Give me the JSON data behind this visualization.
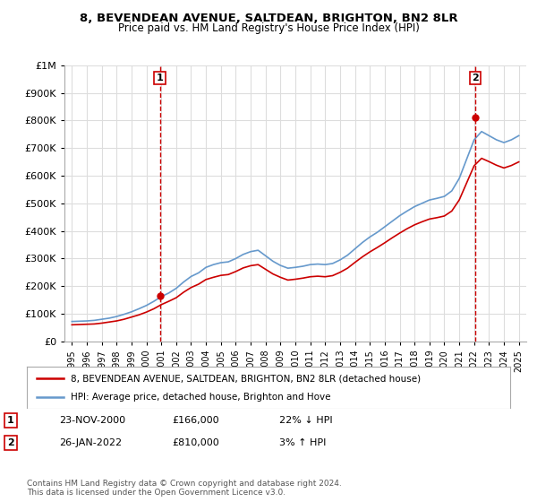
{
  "title": "8, BEVENDEAN AVENUE, SALTDEAN, BRIGHTON, BN2 8LR",
  "subtitle": "Price paid vs. HM Land Registry's House Price Index (HPI)",
  "legend_line1": "8, BEVENDEAN AVENUE, SALTDEAN, BRIGHTON, BN2 8LR (detached house)",
  "legend_line2": "HPI: Average price, detached house, Brighton and Hove",
  "transaction1_label": "1",
  "transaction1_date": "23-NOV-2000",
  "transaction1_price": "£166,000",
  "transaction1_hpi": "22% ↓ HPI",
  "transaction1_year": 2000.9,
  "transaction1_value": 166000,
  "transaction2_label": "2",
  "transaction2_date": "26-JAN-2022",
  "transaction2_price": "£810,000",
  "transaction2_hpi": "3% ↑ HPI",
  "transaction2_year": 2022.07,
  "transaction2_value": 810000,
  "footer": "Contains HM Land Registry data © Crown copyright and database right 2024.\nThis data is licensed under the Open Government Licence v3.0.",
  "property_color": "#cc0000",
  "hpi_color": "#6699cc",
  "background_color": "#ffffff",
  "grid_color": "#dddddd",
  "ylim": [
    0,
    1000000
  ],
  "xlim": [
    1994.5,
    2025.5
  ],
  "yticks": [
    0,
    100000,
    200000,
    300000,
    400000,
    500000,
    600000,
    700000,
    800000,
    900000,
    1000000
  ],
  "ytick_labels": [
    "£0",
    "£100K",
    "£200K",
    "£300K",
    "£400K",
    "£500K",
    "£600K",
    "£700K",
    "£800K",
    "£900K",
    "£1M"
  ],
  "xticks": [
    1995,
    1996,
    1997,
    1998,
    1999,
    2000,
    2001,
    2002,
    2003,
    2004,
    2005,
    2006,
    2007,
    2008,
    2009,
    2010,
    2011,
    2012,
    2013,
    2014,
    2015,
    2016,
    2017,
    2018,
    2019,
    2020,
    2021,
    2022,
    2023,
    2024,
    2025
  ],
  "hpi_x": [
    1995,
    1995.5,
    1996,
    1996.5,
    1997,
    1997.5,
    1998,
    1998.5,
    1999,
    1999.5,
    2000,
    2000.5,
    2001,
    2001.5,
    2002,
    2002.5,
    2003,
    2003.5,
    2004,
    2004.5,
    2005,
    2005.5,
    2006,
    2006.5,
    2007,
    2007.5,
    2008,
    2008.5,
    2009,
    2009.5,
    2010,
    2010.5,
    2011,
    2011.5,
    2012,
    2012.5,
    2013,
    2013.5,
    2014,
    2014.5,
    2015,
    2015.5,
    2016,
    2016.5,
    2017,
    2017.5,
    2018,
    2018.5,
    2019,
    2019.5,
    2020,
    2020.5,
    2021,
    2021.5,
    2022,
    2022.5,
    2023,
    2023.5,
    2024,
    2024.5,
    2025
  ],
  "hpi_y": [
    72000,
    73000,
    74000,
    76000,
    80000,
    84000,
    90000,
    98000,
    107000,
    118000,
    130000,
    145000,
    162000,
    175000,
    192000,
    215000,
    235000,
    248000,
    268000,
    278000,
    285000,
    288000,
    300000,
    315000,
    325000,
    330000,
    310000,
    290000,
    275000,
    265000,
    268000,
    272000,
    278000,
    280000,
    278000,
    282000,
    295000,
    312000,
    335000,
    358000,
    378000,
    395000,
    415000,
    435000,
    455000,
    472000,
    488000,
    500000,
    512000,
    518000,
    525000,
    545000,
    590000,
    660000,
    730000,
    760000,
    745000,
    730000,
    720000,
    730000,
    745000
  ],
  "prop_x": [
    1995,
    1995.5,
    1996,
    1996.5,
    1997,
    1997.5,
    1998,
    1998.5,
    1999,
    1999.5,
    2000,
    2000.5,
    2001,
    2001.5,
    2002,
    2002.5,
    2003,
    2003.5,
    2004,
    2004.5,
    2005,
    2005.5,
    2006,
    2006.5,
    2007,
    2007.5,
    2008,
    2008.5,
    2009,
    2009.5,
    2010,
    2010.5,
    2011,
    2011.5,
    2012,
    2012.5,
    2013,
    2013.5,
    2014,
    2014.5,
    2015,
    2015.5,
    2016,
    2016.5,
    2017,
    2017.5,
    2018,
    2018.5,
    2019,
    2019.5,
    2020,
    2020.5,
    2021,
    2021.5,
    2022,
    2022.5,
    2023,
    2023.5,
    2024,
    2024.5,
    2025
  ],
  "prop_y": [
    60000,
    61000,
    62000,
    63000,
    66000,
    70000,
    74000,
    80000,
    88000,
    96000,
    106000,
    118000,
    133000,
    145000,
    158000,
    178000,
    195000,
    207000,
    224000,
    232000,
    239000,
    242000,
    253000,
    266000,
    274000,
    278000,
    261000,
    244000,
    232000,
    222000,
    225000,
    229000,
    234000,
    236000,
    234000,
    238000,
    250000,
    265000,
    286000,
    306000,
    324000,
    340000,
    357000,
    375000,
    392000,
    408000,
    422000,
    433000,
    443000,
    448000,
    454000,
    472000,
    512000,
    574000,
    636000,
    663000,
    651000,
    638000,
    628000,
    637000,
    650000
  ]
}
